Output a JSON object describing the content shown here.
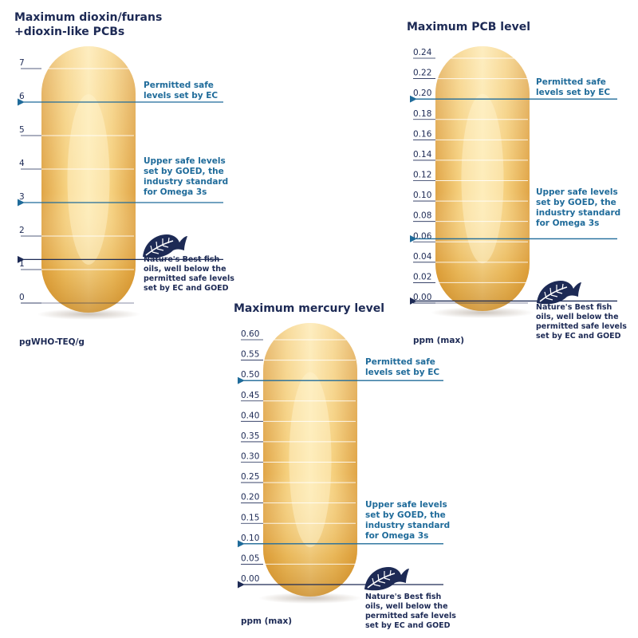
{
  "chart_data": [
    {
      "type": "bar",
      "title": [
        "Maximum dioxin/furans",
        "+dioxin-like PCBs"
      ],
      "unit_label": "pgWHO-TEQ/g",
      "ticks": [
        "0",
        "1",
        "2",
        "3",
        "4",
        "5",
        "6",
        "7"
      ],
      "ylim": [
        0,
        7.4
      ],
      "grid": true,
      "markers": [
        {
          "value": 6,
          "label": [
            "Permitted safe",
            "levels set by EC"
          ]
        },
        {
          "value": 3,
          "label": [
            "Upper safe levels",
            "set by GOED, the",
            "industry standard",
            "for Omega 3s"
          ]
        },
        {
          "value": 1.3,
          "label": [
            "Nature's Best fish",
            "oils, well below the",
            "permitted safe levels",
            "set by EC and GOED"
          ]
        }
      ]
    },
    {
      "type": "bar",
      "title": [
        "Maximum PCB level"
      ],
      "unit_label": "ppm (max)",
      "ticks": [
        "0.00",
        "0.02",
        "0.04",
        "0.06",
        "0.08",
        "0.10",
        "0.12",
        "0.14",
        "0.16",
        "0.18",
        "0.20",
        "0.22",
        "0.24"
      ],
      "ylim": [
        0,
        0.25
      ],
      "grid": true,
      "markers": [
        {
          "value": 0.2,
          "label": [
            "Permitted safe",
            "levels set by EC"
          ]
        },
        {
          "value": 0.063,
          "label": [
            "Upper safe levels",
            "set by GOED, the",
            "industry standard",
            "for Omega 3s"
          ]
        },
        {
          "value": 0.002,
          "label": [
            "Nature's Best fish",
            "oils, well below the",
            "permitted safe levels",
            "set by EC and GOED"
          ]
        }
      ]
    },
    {
      "type": "bar",
      "title": [
        "Maximum mercury level"
      ],
      "unit_label": "ppm (max)",
      "ticks": [
        "0.00",
        "0.05",
        "0.10",
        "0.15",
        "0.20",
        "0.25",
        "0.30",
        "0.35",
        "0.40",
        "0.45",
        "0.50",
        "0.55",
        "0.60"
      ],
      "ylim": [
        0,
        0.61
      ],
      "grid": true,
      "markers": [
        {
          "value": 0.5,
          "label": [
            "Permitted safe",
            "levels set by EC"
          ]
        },
        {
          "value": 0.1,
          "label": [
            "Upper safe levels",
            "set by GOED, the",
            "industry standard",
            "for Omega 3s"
          ]
        },
        {
          "value": 0.0,
          "label": [
            "Nature's Best fish",
            "oils, well below the",
            "permitted safe levels",
            "set by EC and GOED"
          ]
        }
      ]
    }
  ],
  "colors": {
    "title": "#1d2a55",
    "annotation": "#1f6b9a",
    "arrow": "#1f6b9a",
    "arrow_dark": "#1d2a55",
    "capsule_light": "#fde6a8",
    "capsule_mid": "#f2c56a",
    "capsule_dark": "#d9921c",
    "logo": "#1d2a55"
  },
  "icons": {
    "logo": "leaf-fish-icon"
  }
}
